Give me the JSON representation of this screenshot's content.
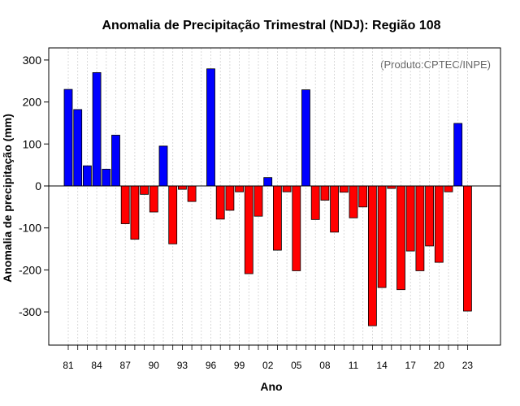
{
  "chart_data": {
    "type": "bar",
    "title": "Anomalia de Precipitação Trimestral (NDJ): Região 108",
    "xlabel": "Ano",
    "ylabel": "Anomalia de precipitação (mm)",
    "source_note": "(Produto:CPTEC/INPE)",
    "ylim": [
      -380,
      330
    ],
    "yticks": [
      300,
      200,
      100,
      0,
      -100,
      -200,
      -300
    ],
    "ytick_labels": [
      "300",
      "200",
      "100",
      "0",
      "-100",
      "-200",
      "-300"
    ],
    "xtick_labels": [
      "81",
      "84",
      "87",
      "90",
      "93",
      "96",
      "99",
      "02",
      "05",
      "08",
      "11",
      "14",
      "17",
      "20",
      "23"
    ],
    "grid": true,
    "positive_color": "#0000ff",
    "negative_color": "#ff0000",
    "categories": [
      "1981",
      "1982",
      "1983",
      "1984",
      "1985",
      "1986",
      "1987",
      "1988",
      "1989",
      "1990",
      "1991",
      "1992",
      "1993",
      "1994",
      "1995",
      "1996",
      "1997",
      "1998",
      "1999",
      "2000",
      "2001",
      "2002",
      "2003",
      "2004",
      "2005",
      "2006",
      "2007",
      "2008",
      "2009",
      "2010",
      "2011",
      "2012",
      "2013",
      "2014",
      "2015",
      "2016",
      "2017",
      "2018",
      "2019",
      "2020",
      "2021",
      "2022",
      "2023"
    ],
    "values": [
      230,
      182,
      48,
      270,
      40,
      121,
      -90,
      -127,
      -20,
      -62,
      95,
      -138,
      -8,
      -37,
      0,
      279,
      -79,
      -58,
      -14,
      -209,
      -72,
      20,
      -153,
      -14,
      -202,
      229,
      -80,
      -34,
      -110,
      -15,
      -76,
      -50,
      -333,
      -242,
      -6,
      -247,
      -155,
      -202,
      -143,
      -182,
      -14,
      149,
      -298
    ]
  }
}
